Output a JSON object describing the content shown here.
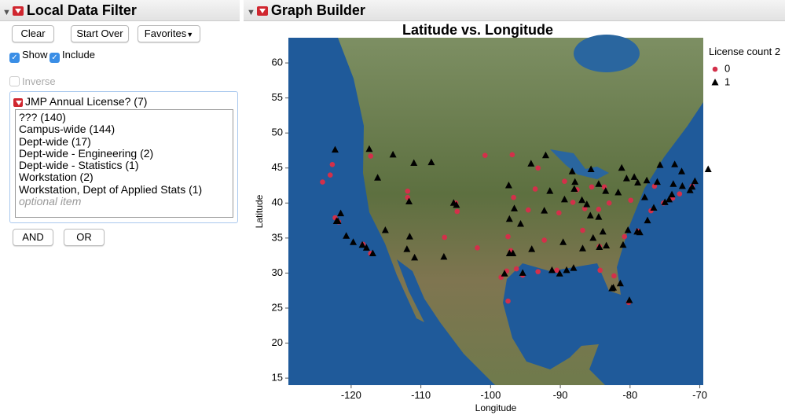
{
  "filter_panel": {
    "title": "Local Data Filter",
    "buttons": [
      "Clear",
      "Start Over",
      "Favorites"
    ],
    "show": "Show",
    "include": "Include",
    "inverse": "Inverse",
    "filter_title": "JMP Annual License? (7)",
    "items": [
      "??? (140)",
      "Campus-wide (144)",
      "Dept-wide (17)",
      "Dept-wide - Engineering (2)",
      "Dept-wide - Statistics (1)",
      "Workstation (2)",
      "Workstation, Dept of Applied Stats (1)"
    ],
    "placeholder": "optional item",
    "logic_buttons": [
      "AND",
      "OR"
    ]
  },
  "graph_panel": {
    "title": "Graph Builder"
  },
  "chart_data": {
    "type": "scatter",
    "title": "Latitude vs. Longitude",
    "x_label": "Longitude",
    "y_label": "Latitude",
    "legend_title": "License count 2",
    "legend": "right",
    "xlim": [
      -129,
      -69.5
    ],
    "ylim": [
      14,
      63.6
    ],
    "xticks": [
      -120,
      -110,
      -100,
      -90,
      -80,
      -70
    ],
    "yticks": [
      15,
      20,
      25,
      30,
      35,
      40,
      45,
      50,
      55,
      60
    ],
    "series": [
      {
        "name": "0",
        "color": "#d3304a",
        "marker": "circle",
        "x": [
          -124.1,
          -117.2,
          -118.3,
          -122.3,
          -121.8,
          -123,
          -122.7,
          -117.2,
          -111.9,
          -111.9,
          -105,
          -104.8,
          -106.6,
          -97.5,
          -97.7,
          -96.3,
          -97.1,
          -95.4,
          -97.5,
          -94.6,
          -96.7,
          -93.6,
          -93.2,
          -89.4,
          -88.2,
          -87.6,
          -86.5,
          -84.5,
          -83,
          -83.7,
          -85.5,
          -84.4,
          -86.8,
          -90.2,
          -90.5,
          -80.8,
          -78.9,
          -77,
          -75.2,
          -73.9,
          -71.1,
          -72.9,
          -76.5,
          -79.9,
          -80.2,
          -82.3,
          -84.3,
          -93.2,
          -92.3,
          -98.5,
          -101.9,
          -96.9,
          -100.8
        ],
        "y": [
          43,
          32.8,
          34.1,
          37.9,
          37.3,
          44,
          45.5,
          46.7,
          40.8,
          41.7,
          40,
          38.8,
          35.1,
          35.2,
          30.3,
          30.6,
          33.2,
          29.7,
          26,
          39,
          40.8,
          42,
          45,
          43.1,
          40.1,
          41.9,
          39.2,
          39.1,
          40,
          42.3,
          42.3,
          33.8,
          36.1,
          38.6,
          30.4,
          35.2,
          36,
          38.9,
          40,
          40.7,
          42.4,
          41.3,
          42.4,
          40.4,
          25.8,
          29.6,
          30.4,
          30.2,
          34.7,
          29.4,
          33.6,
          46.9,
          46.8
        ]
      },
      {
        "name": "1",
        "color": "#000000",
        "marker": "triangle",
        "x": [
          -122.3,
          -117.4,
          -121.9,
          -122.1,
          -118.4,
          -117.8,
          -116.9,
          -119.7,
          -121.5,
          -120.7,
          -115.1,
          -112,
          -110.9,
          -111.6,
          -106.7,
          -104.9,
          -105.3,
          -111.7,
          -114,
          -111,
          -116.2,
          -108.5,
          -97.3,
          -96.6,
          -95.7,
          -97.4,
          -92.3,
          -91.5,
          -89.4,
          -88,
          -86.9,
          -85.7,
          -86.2,
          -84.5,
          -83.9,
          -85.3,
          -86.8,
          -88.1,
          -89.1,
          -90.1,
          -91.2,
          -95.4,
          -96.8,
          -97.3,
          -98,
          -94.1,
          -89.6,
          -84.4,
          -83.4,
          -81,
          -82.4,
          -81.4,
          -80.1,
          -82.6,
          -80.3,
          -79,
          -78.6,
          -77.5,
          -76.6,
          -77.9,
          -75,
          -74.4,
          -74,
          -73.8,
          -76.1,
          -77.6,
          -78.9,
          -71.4,
          -71.1,
          -72.5,
          -70.7,
          -68.8,
          -72.6,
          -81.7,
          -83.5,
          -84.5,
          -85.6,
          -87.9,
          -92.1,
          -94.2,
          -88.3,
          -81.2,
          -80.5,
          -79.4,
          -75.7,
          -73.6
        ],
        "y": [
          47.6,
          47.7,
          37.4,
          37.4,
          34,
          33.6,
          32.8,
          34.4,
          38.5,
          35.3,
          36.1,
          33.4,
          32.2,
          35.2,
          32.3,
          39.7,
          40,
          40.2,
          46.9,
          45.7,
          43.6,
          45.8,
          37.7,
          39.2,
          37,
          42.5,
          38.9,
          41.7,
          40.5,
          42,
          40.4,
          38.2,
          39.8,
          38,
          35.9,
          35,
          33.5,
          30.7,
          30.4,
          29.9,
          30.4,
          30,
          32.8,
          32.8,
          29.9,
          33.4,
          34.4,
          33.7,
          33.9,
          34,
          27.9,
          28.5,
          26.1,
          27.8,
          36.1,
          35.9,
          35.8,
          37.5,
          39.3,
          40.8,
          40.1,
          40.5,
          41.2,
          42.7,
          43,
          43.2,
          42.9,
          41.8,
          42.3,
          42.4,
          43.1,
          44.8,
          44.5,
          41.5,
          41.7,
          42.7,
          44.8,
          43,
          46.8,
          45.6,
          44.5,
          45,
          43.5,
          43.7,
          45.4,
          45.5
        ]
      }
    ]
  }
}
